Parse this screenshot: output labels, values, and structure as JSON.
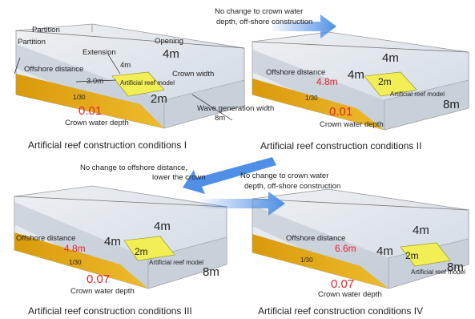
{
  "panels": [
    {
      "caption": "Artificial reef construction conditions I",
      "labels": {
        "partition_top": "Partition",
        "partition_side": "Partition",
        "offshore_distance": "Offshore distance",
        "extension": "Extension",
        "opening": "Opening",
        "crown_width": "Crown width",
        "dist_value": "3.0m",
        "extension_value": "4m",
        "opening_value": "4m",
        "crown_value": "2m",
        "reef_label": "Artificial reef model",
        "slope": "1/30",
        "crown_depth_value": "0.01",
        "crown_depth": "Crown water depth",
        "wave_width": "Wave generation width",
        "wave_width_value": "8m"
      }
    },
    {
      "caption": "Artificial reef construction conditions II",
      "labels": {
        "offshore_distance": "Offshore distance",
        "dist_value": "4.8m",
        "extension_value": "4m",
        "opening_value": "4m",
        "crown_value": "2m",
        "reef_label": "Artificial reef model",
        "slope": "1/30",
        "crown_depth_value": "0.01",
        "crown_depth": "Crown water depth",
        "width_value": "8m"
      }
    },
    {
      "caption": "Artificial reef construction conditions III",
      "labels": {
        "offshore_distance": "Offshore distance",
        "dist_value": "4.8m",
        "extension_value": "4m",
        "opening_value": "4m",
        "crown_value": "2m",
        "reef_label": "Artificial reef model",
        "slope": "1/30",
        "crown_depth_value": "0.07",
        "crown_depth": "Crown water depth",
        "width_value": "8m"
      }
    },
    {
      "caption": "Artificial reef construction conditions IV",
      "labels": {
        "offshore_distance": "Offshore distance",
        "dist_value": "6.6m",
        "extension_value": "4m",
        "opening_value": "4m",
        "crown_value": "2m",
        "reef_label": "Artificial reef model",
        "slope": "1/30",
        "crown_depth_value": "0.07",
        "crown_depth": "Crown water depth",
        "width_value": "8m"
      }
    }
  ],
  "arrows": {
    "a1": {
      "line1": "No change to crown water",
      "line2": "depth, off-shore construction"
    },
    "a2": {
      "line1": "No change to offshore distance,",
      "line2": "lower the crown"
    },
    "a3": {
      "line1": "No change to crown water",
      "line2": "depth, off-shore construction"
    }
  },
  "colors": {
    "sand": "#e4ae12",
    "sand_dark": "#c98f0a",
    "water": "#dce3ea",
    "reef": "#f2ee55",
    "value_red": "#e8232a",
    "arrow_blue": "#4f8fe6"
  }
}
